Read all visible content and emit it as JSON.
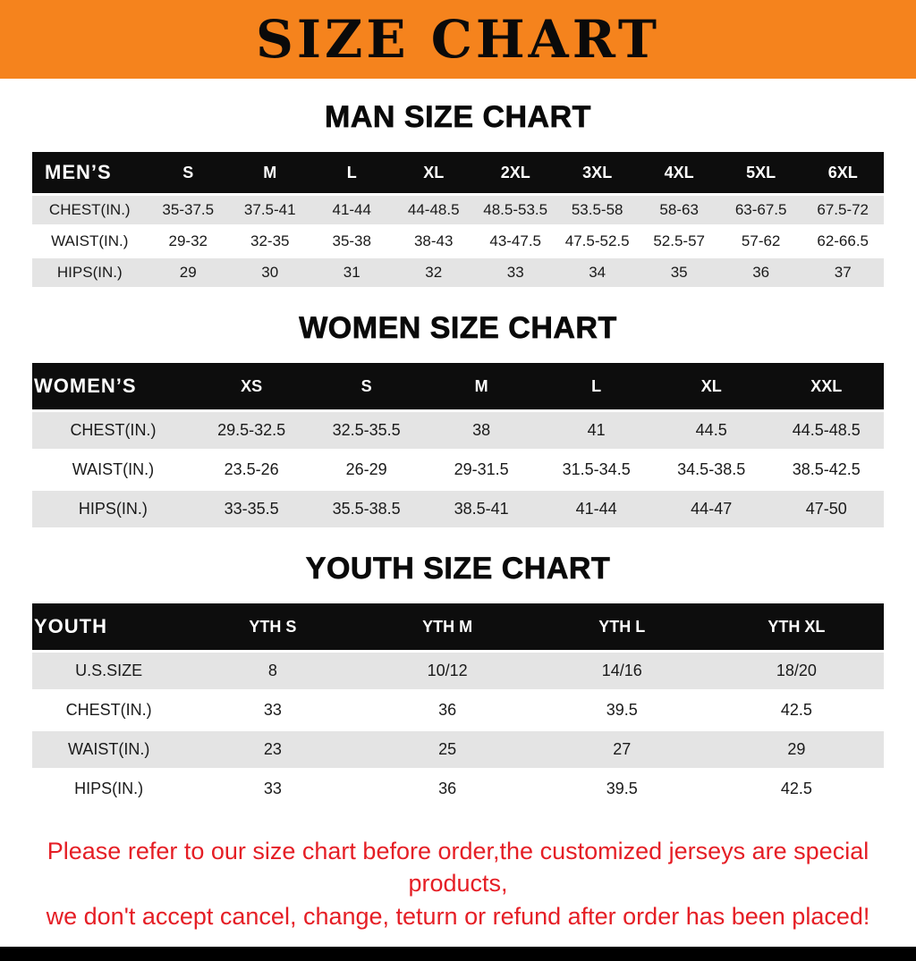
{
  "banner": {
    "title": "SIZE CHART"
  },
  "colors": {
    "banner_orange": "#f5831d",
    "header_black": "#0d0d0d",
    "row_gray": "#e4e4e4",
    "note_red": "#e51e25"
  },
  "sections": [
    {
      "heading": "MAN SIZE CHART",
      "table": {
        "header": [
          "MEN’S",
          "S",
          "M",
          "L",
          "XL",
          "2XL",
          "3XL",
          "4XL",
          "5XL",
          "6XL"
        ],
        "rows": [
          [
            "CHEST(IN.)",
            "35-37.5",
            "37.5-41",
            "41-44",
            "44-48.5",
            "48.5-53.5",
            "53.5-58",
            "58-63",
            "63-67.5",
            "67.5-72"
          ],
          [
            "WAIST(IN.)",
            "29-32",
            "32-35",
            "35-38",
            "38-43",
            "43-47.5",
            "47.5-52.5",
            "52.5-57",
            "57-62",
            "62-66.5"
          ],
          [
            "HIPS(IN.)",
            "29",
            "30",
            "31",
            "32",
            "33",
            "34",
            "35",
            "36",
            "37"
          ]
        ]
      }
    },
    {
      "heading": "WOMEN SIZE CHART",
      "table": {
        "header": [
          "WOMEN’S",
          "XS",
          "S",
          "M",
          "L",
          "XL",
          "XXL"
        ],
        "rows": [
          [
            "CHEST(IN.)",
            "29.5-32.5",
            "32.5-35.5",
            "38",
            "41",
            "44.5",
            "44.5-48.5"
          ],
          [
            "WAIST(IN.)",
            "23.5-26",
            "26-29",
            "29-31.5",
            "31.5-34.5",
            "34.5-38.5",
            "38.5-42.5"
          ],
          [
            "HIPS(IN.)",
            "33-35.5",
            "35.5-38.5",
            "38.5-41",
            "41-44",
            "44-47",
            "47-50"
          ]
        ]
      }
    },
    {
      "heading": "YOUTH SIZE CHART",
      "table": {
        "header": [
          "YOUTH",
          "YTH S",
          "YTH M",
          "YTH L",
          "YTH XL"
        ],
        "rows": [
          [
            "U.S.SIZE",
            "8",
            "10/12",
            "14/16",
            "18/20"
          ],
          [
            "CHEST(IN.)",
            "33",
            "36",
            "39.5",
            "42.5"
          ],
          [
            "WAIST(IN.)",
            "23",
            "25",
            "27",
            "29"
          ],
          [
            "HIPS(IN.)",
            "33",
            "36",
            "39.5",
            "42.5"
          ]
        ]
      }
    }
  ],
  "footer_note": {
    "lines": [
      "Please refer to our size chart before order,the customized jerseys are special products,",
      "we don't accept cancel, change, teturn or refund after order has been placed!"
    ]
  }
}
